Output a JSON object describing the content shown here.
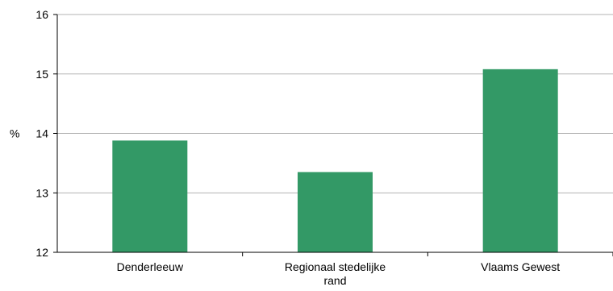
{
  "chart_data": {
    "type": "bar",
    "categories": [
      [
        "Denderleeuw"
      ],
      [
        "Regionaal stedelijke",
        "rand"
      ],
      [
        "Vlaams Gewest"
      ]
    ],
    "values": [
      13.88,
      13.35,
      15.08
    ],
    "ylabel": "%",
    "ylim": [
      12,
      16
    ],
    "yticks": [
      12,
      13,
      14,
      15,
      16
    ],
    "grid": true,
    "bar_color": "#339966",
    "grid_color": "#b3b3b3",
    "axis_color": "#000000"
  }
}
